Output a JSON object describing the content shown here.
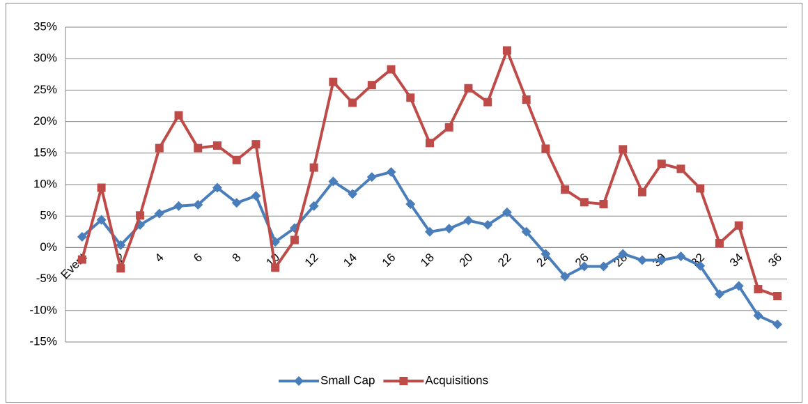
{
  "chart_data": {
    "type": "line",
    "categories": [
      "Event",
      null,
      "2",
      null,
      "4",
      null,
      "6",
      null,
      "8",
      null,
      "10",
      null,
      "12",
      null,
      "14",
      null,
      "16",
      null,
      "18",
      null,
      "20",
      null,
      "22",
      null,
      "24",
      null,
      "26",
      null,
      "28",
      null,
      "30",
      null,
      "32",
      null,
      "34",
      null,
      "36"
    ],
    "series": [
      {
        "name": "Small Cap",
        "color": "#4a7ebb",
        "marker": "diamond",
        "values": [
          1.7,
          4.4,
          0.4,
          3.6,
          5.4,
          6.6,
          6.8,
          9.5,
          7.1,
          8.2,
          0.9,
          3.1,
          6.6,
          10.5,
          8.5,
          11.2,
          12.0,
          6.9,
          2.5,
          3.0,
          4.3,
          3.6,
          5.6,
          2.5,
          -1.0,
          -4.6,
          -3.0,
          -3.0,
          -1.0,
          -2.0,
          -2.0,
          -1.4,
          -2.9,
          -7.4,
          -6.1,
          -10.8,
          -12.2
        ]
      },
      {
        "name": "Acquisitions",
        "color": "#be4b48",
        "marker": "square",
        "values": [
          -1.9,
          9.5,
          -3.3,
          5.1,
          15.8,
          21.0,
          15.8,
          16.2,
          13.9,
          16.4,
          -3.2,
          1.2,
          12.7,
          26.3,
          23.0,
          25.8,
          28.3,
          23.8,
          16.6,
          19.1,
          25.3,
          23.1,
          31.3,
          23.5,
          15.7,
          9.2,
          7.2,
          6.9,
          15.6,
          8.8,
          13.3,
          12.5,
          9.4,
          0.7,
          3.5,
          -6.6,
          -7.7
        ]
      }
    ],
    "ylim": [
      -15,
      35
    ],
    "yticks": [
      {
        "value": -15,
        "label": "-15%"
      },
      {
        "value": -10,
        "label": "-10%"
      },
      {
        "value": -5,
        "label": "-5%"
      },
      {
        "value": 0,
        "label": "0%"
      },
      {
        "value": 5,
        "label": "5%"
      },
      {
        "value": 10,
        "label": "10%"
      },
      {
        "value": 15,
        "label": "15%"
      },
      {
        "value": 20,
        "label": "20%"
      },
      {
        "value": 25,
        "label": "25%"
      },
      {
        "value": 30,
        "label": "30%"
      },
      {
        "value": 35,
        "label": "35%"
      }
    ],
    "grid": true,
    "legend": "bottom"
  }
}
